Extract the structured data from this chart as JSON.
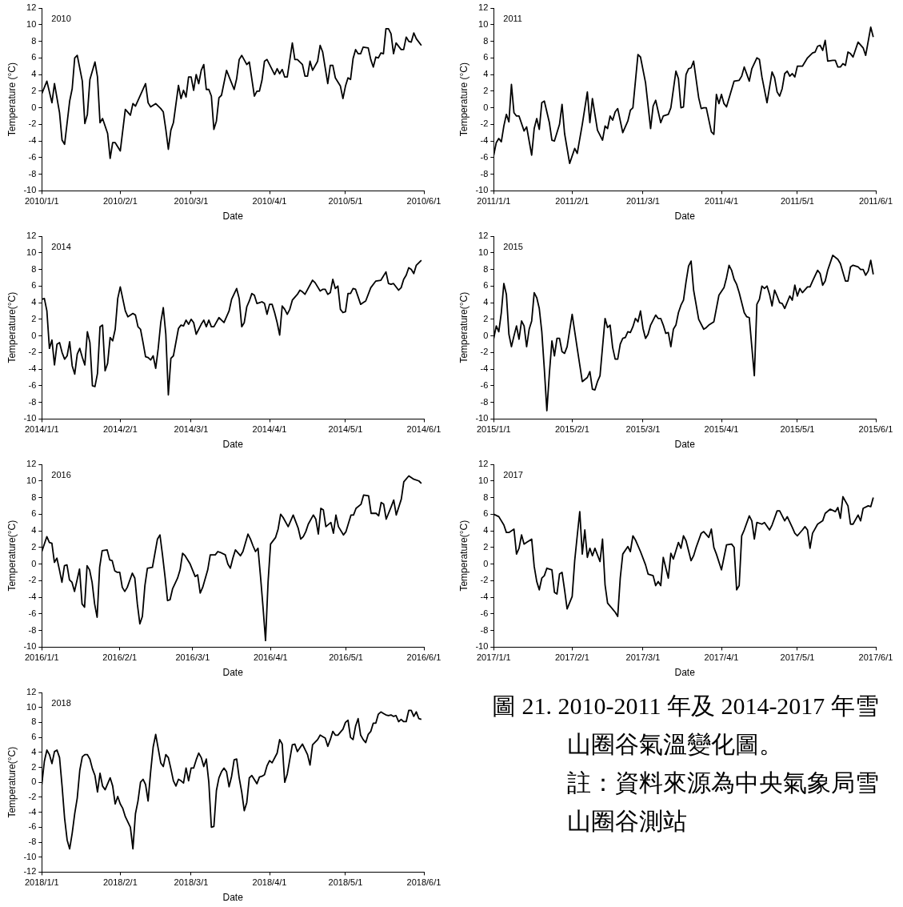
{
  "chart_data": [
    {
      "type": "line",
      "xlabel": "Date",
      "ylabel": "Temperature (°C)",
      "annotations": [
        "2010"
      ],
      "color": "#000000",
      "xlim": [
        "2010-01-01",
        "2010-06-01"
      ],
      "xticks": [
        {
          "value": "2010-01-01",
          "label": "2010/1/1"
        },
        {
          "value": "2010-02-01",
          "label": "2010/2/1"
        },
        {
          "value": "2010-03-01",
          "label": "2010/3/1"
        },
        {
          "value": "2010-04-01",
          "label": "2010/4/1"
        },
        {
          "value": "2010-05-01",
          "label": "2010/5/1"
        },
        {
          "value": "2010-06-01",
          "label": "2010/6/1"
        }
      ],
      "ylim": [
        -10,
        12
      ],
      "yticks": [
        -10,
        -8,
        -6,
        -4,
        -2,
        0,
        2,
        4,
        6,
        8,
        10,
        12
      ],
      "x": [
        "2010-01-01",
        "2010-01-03",
        "2010-01-05",
        "2010-01-06",
        "2010-01-08",
        "2010-01-09",
        "2010-01-10",
        "2010-01-12",
        "2010-01-13",
        "2010-01-14",
        "2010-01-15",
        "2010-01-17",
        "2010-01-18",
        "2010-01-19",
        "2010-01-20",
        "2010-01-22",
        "2010-01-23",
        "2010-01-24",
        "2010-01-25",
        "2010-01-27",
        "2010-01-28",
        "2010-01-29",
        "2010-01-30",
        "2010-02-01",
        "2010-02-03",
        "2010-02-05",
        "2010-02-06",
        "2010-02-07",
        "2010-02-11",
        "2010-02-12",
        "2010-02-13",
        "2010-02-15",
        "2010-02-17",
        "2010-02-18",
        "2010-02-19",
        "2010-02-20",
        "2010-02-21",
        "2010-02-22",
        "2010-02-24",
        "2010-02-25",
        "2010-02-26",
        "2010-02-27",
        "2010-02-28",
        "2010-03-01",
        "2010-03-02",
        "2010-03-03",
        "2010-03-04",
        "2010-03-05",
        "2010-03-06",
        "2010-03-07",
        "2010-03-08",
        "2010-03-09",
        "2010-03-10",
        "2010-03-11",
        "2010-03-12",
        "2010-03-13",
        "2010-03-15",
        "2010-03-18",
        "2010-03-19",
        "2010-03-20",
        "2010-03-21",
        "2010-03-23",
        "2010-03-24",
        "2010-03-26",
        "2010-03-27",
        "2010-03-28",
        "2010-03-29",
        "2010-03-30",
        "2010-03-31",
        "2010-04-03",
        "2010-04-04",
        "2010-04-05",
        "2010-04-06",
        "2010-04-07",
        "2010-04-08",
        "2010-04-10",
        "2010-04-11",
        "2010-04-12",
        "2010-04-14",
        "2010-04-15",
        "2010-04-16",
        "2010-04-17",
        "2010-04-18",
        "2010-04-20",
        "2010-04-21",
        "2010-04-22",
        "2010-04-24",
        "2010-04-25",
        "2010-04-26",
        "2010-04-27",
        "2010-04-29",
        "2010-04-30",
        "2010-05-01",
        "2010-05-02",
        "2010-05-03",
        "2010-05-04",
        "2010-05-05",
        "2010-05-06",
        "2010-05-07",
        "2010-05-08",
        "2010-05-10",
        "2010-05-11",
        "2010-05-12",
        "2010-05-13",
        "2010-05-14",
        "2010-05-15",
        "2010-05-16",
        "2010-05-17",
        "2010-05-18",
        "2010-05-19",
        "2010-05-20",
        "2010-05-21",
        "2010-05-23",
        "2010-05-24",
        "2010-05-25",
        "2010-05-26",
        "2010-05-27",
        "2010-05-28",
        "2010-05-29",
        "2010-05-31"
      ],
      "values": [
        1.7,
        3.2,
        0.6,
        2.9,
        -0.6,
        -3.9,
        -4.4,
        0.8,
        2.3,
        6.0,
        6.3,
        3.2,
        -1.9,
        -0.8,
        3.4,
        5.5,
        3.7,
        -1.8,
        -1.3,
        -3.1,
        -6.1,
        -4.2,
        -4.2,
        -5.2,
        -0.2,
        -0.9,
        0.5,
        0.2,
        2.9,
        0.6,
        0.1,
        0.5,
        -0.1,
        -0.5,
        -2.6,
        -5.0,
        -2.7,
        -1.8,
        2.7,
        1.1,
        2.1,
        1.3,
        3.7,
        3.7,
        2.1,
        4.0,
        2.9,
        4.5,
        5.2,
        2.2,
        2.2,
        1.4,
        -2.6,
        -1.6,
        1.2,
        1.5,
        4.5,
        2.2,
        3.5,
        5.8,
        6.3,
        5.2,
        5.5,
        1.4,
        2.0,
        2.0,
        3.3,
        5.6,
        5.8,
        4.0,
        4.7,
        4.1,
        4.6,
        3.7,
        3.7,
        7.8,
        5.8,
        5.8,
        5.2,
        3.8,
        3.8,
        5.6,
        4.5,
        5.6,
        7.5,
        6.7,
        2.9,
        5.1,
        5.1,
        3.6,
        2.6,
        1.1,
        2.6,
        3.6,
        3.4,
        5.9,
        7.0,
        6.5,
        6.5,
        7.3,
        7.2,
        5.8,
        4.9,
        6.1,
        6.0,
        6.6,
        6.5,
        9.5,
        9.5,
        8.9,
        6.5,
        7.8,
        7.0,
        7.0,
        8.5,
        8.0,
        7.9,
        9.0,
        8.3,
        7.5
      ]
    },
    {
      "type": "line",
      "xlabel": "Date",
      "ylabel": "Temperature (°C)",
      "annotations": [
        "2011"
      ],
      "color": "#000000",
      "xlim": [
        "2011-01-01",
        "2011-06-01"
      ],
      "xticks": [
        {
          "value": "2011-01-01",
          "label": "2011/1/1"
        },
        {
          "value": "2011-02-01",
          "label": "2011/2/1"
        },
        {
          "value": "2011-03-01",
          "label": "2011/3/1"
        },
        {
          "value": "2011-04-01",
          "label": "2011/4/1"
        },
        {
          "value": "2011-05-01",
          "label": "2011/5/1"
        },
        {
          "value": "2011-06-01",
          "label": "2011/6/1"
        }
      ],
      "ylim": [
        -10,
        12
      ],
      "yticks": [
        -10,
        -8,
        -6,
        -4,
        -2,
        0,
        2,
        4,
        6,
        8,
        10,
        12
      ],
      "x": [
        "2011-01-01",
        "2011-01-02",
        "2011-01-03",
        "2011-01-04",
        "2011-01-05",
        "2011-01-06",
        "2011-01-07",
        "2011-01-08",
        "2011-01-09",
        "2011-01-10",
        "2011-01-11",
        "2011-01-13",
        "2011-01-14",
        "2011-01-16",
        "2011-01-17",
        "2011-01-18",
        "2011-01-19",
        "2011-01-20",
        "2011-01-21",
        "2011-01-23",
        "2011-01-24",
        "2011-01-25",
        "2011-01-27",
        "2011-01-28",
        "2011-01-29",
        "2011-01-31",
        "2011-02-02",
        "2011-02-03",
        "2011-02-05",
        "2011-02-07",
        "2011-02-08",
        "2011-02-09",
        "2011-02-11",
        "2011-02-13",
        "2011-02-14",
        "2011-02-15",
        "2011-02-16",
        "2011-02-17",
        "2011-02-18",
        "2011-02-19",
        "2011-02-21",
        "2011-02-23",
        "2011-02-24",
        "2011-02-25",
        "2011-02-27",
        "2011-02-28",
        "2011-03-02",
        "2011-03-04",
        "2011-03-05",
        "2011-03-06",
        "2011-03-08",
        "2011-03-09",
        "2011-03-11",
        "2011-03-12",
        "2011-03-14",
        "2011-03-15",
        "2011-03-16",
        "2011-03-17",
        "2011-03-18",
        "2011-03-19",
        "2011-03-20",
        "2011-03-21",
        "2011-03-23",
        "2011-03-24",
        "2011-03-25",
        "2011-03-26",
        "2011-03-28",
        "2011-03-29",
        "2011-03-30",
        "2011-03-31",
        "2011-04-01",
        "2011-04-02",
        "2011-04-03",
        "2011-04-06",
        "2011-04-08",
        "2011-04-09",
        "2011-04-10",
        "2011-04-12",
        "2011-04-13",
        "2011-04-15",
        "2011-04-16",
        "2011-04-17",
        "2011-04-19",
        "2011-04-21",
        "2011-04-22",
        "2011-04-23",
        "2011-04-24",
        "2011-04-25",
        "2011-04-26",
        "2011-04-27",
        "2011-04-28",
        "2011-04-29",
        "2011-04-30",
        "2011-05-01",
        "2011-05-03",
        "2011-05-05",
        "2011-05-07",
        "2011-05-08",
        "2011-05-09",
        "2011-05-10",
        "2011-05-11",
        "2011-05-12",
        "2011-05-13",
        "2011-05-15",
        "2011-05-16",
        "2011-05-17",
        "2011-05-18",
        "2011-05-19",
        "2011-05-20",
        "2011-05-21",
        "2011-05-22",
        "2011-05-23",
        "2011-05-25",
        "2011-05-27",
        "2011-05-28",
        "2011-05-30",
        "2011-05-31"
      ],
      "values": [
        -5.7,
        -4.2,
        -3.7,
        -4.1,
        -2.2,
        -0.8,
        -1.7,
        2.8,
        -0.6,
        -1.0,
        -1.0,
        -2.8,
        -2.3,
        -5.7,
        -2.5,
        -1.3,
        -2.6,
        0.6,
        0.8,
        -1.8,
        -3.9,
        -4.0,
        -2.0,
        0.4,
        -3.1,
        -6.7,
        -4.9,
        -5.5,
        -2.0,
        1.9,
        -1.8,
        1.1,
        -2.7,
        -3.9,
        -2.2,
        -2.5,
        -1.0,
        -1.5,
        -0.5,
        -0.1,
        -3.0,
        -1.6,
        -0.3,
        0.0,
        6.4,
        6.1,
        3.0,
        -2.5,
        0.2,
        0.9,
        -1.8,
        -1.0,
        -0.8,
        0.0,
        4.4,
        3.5,
        0.0,
        0.1,
        4.0,
        4.7,
        4.8,
        5.6,
        1.2,
        -0.1,
        0.0,
        0.0,
        -2.9,
        -3.2,
        1.6,
        0.5,
        1.6,
        0.5,
        0.1,
        3.2,
        3.3,
        3.8,
        4.9,
        3.2,
        4.7,
        6.0,
        5.8,
        3.7,
        0.6,
        4.3,
        3.6,
        1.9,
        1.4,
        2.3,
        4.1,
        4.4,
        3.8,
        4.1,
        3.7,
        5.0,
        5.0,
        6.0,
        6.6,
        6.7,
        7.4,
        7.5,
        6.9,
        8.1,
        5.6,
        5.7,
        5.7,
        4.9,
        4.9,
        5.3,
        5.1,
        6.7,
        6.5,
        6.1,
        7.9,
        7.2,
        6.3,
        9.7,
        8.5
      ]
    },
    {
      "type": "line",
      "xlabel": "Date",
      "ylabel": "Temperature(°C)",
      "annotations": [
        "2014"
      ],
      "color": "#000000",
      "xlim": [
        "2014-01-01",
        "2014-06-01"
      ],
      "xticks": [
        {
          "value": "2014-01-01",
          "label": "2014/1/1"
        },
        {
          "value": "2014-02-01",
          "label": "2014/2/1"
        },
        {
          "value": "2014-03-01",
          "label": "2014/3/1"
        },
        {
          "value": "2014-04-01",
          "label": "2014/4/1"
        },
        {
          "value": "2014-05-01",
          "label": "2014/5/1"
        },
        {
          "value": "2014-06-01",
          "label": "2014/6/1"
        }
      ],
      "ylim": [
        -10,
        12
      ],
      "yticks": [
        -10,
        -8,
        -6,
        -4,
        -2,
        0,
        2,
        4,
        6,
        8,
        10,
        12
      ],
      "x": [
        "2014-01-01",
        "2014-01-02",
        "2014-01-03",
        "2014-01-04",
        "2014-01-05",
        "2014-01-06",
        "2014-01-07",
        "2014-01-08",
        "2014-01-09",
        "2014-01-10",
        "2014-01-11",
        "2014-01-12",
        "2014-01-13",
        "2014-01-14",
        "2014-01-15",
        "2014-01-16",
        "2014-01-17",
        "2014-01-18",
        "2014-01-19",
        "2014-01-20",
        "2014-01-21",
        "2014-01-22",
        "2014-01-23",
        "2014-01-24",
        "2014-01-25",
        "2014-01-26",
        "2014-01-27",
        "2014-01-28",
        "2014-01-29",
        "2014-01-30",
        "2014-01-31",
        "2014-02-01",
        "2014-02-03",
        "2014-02-04",
        "2014-02-06",
        "2014-02-07",
        "2014-02-08",
        "2014-02-09",
        "2014-02-10",
        "2014-02-11",
        "2014-02-12",
        "2014-02-13",
        "2014-02-14",
        "2014-02-15",
        "2014-02-16",
        "2014-02-17",
        "2014-02-18",
        "2014-02-19",
        "2014-02-20",
        "2014-02-21",
        "2014-02-22",
        "2014-02-24",
        "2014-02-25",
        "2014-02-26",
        "2014-02-27",
        "2014-02-28",
        "2014-03-01",
        "2014-03-02",
        "2014-03-03",
        "2014-03-05",
        "2014-03-06",
        "2014-03-07",
        "2014-03-08",
        "2014-03-09",
        "2014-03-10",
        "2014-03-12",
        "2014-03-13",
        "2014-03-14",
        "2014-03-16",
        "2014-03-17",
        "2014-03-19",
        "2014-03-20",
        "2014-03-21",
        "2014-03-22",
        "2014-03-23",
        "2014-03-24",
        "2014-03-25",
        "2014-03-26",
        "2014-03-27",
        "2014-03-28",
        "2014-03-29",
        "2014-03-30",
        "2014-03-31",
        "2014-04-01",
        "2014-04-02",
        "2014-04-03",
        "2014-04-04",
        "2014-04-05",
        "2014-04-06",
        "2014-04-07",
        "2014-04-08",
        "2014-04-09",
        "2014-04-10",
        "2014-04-12",
        "2014-04-13",
        "2014-04-14",
        "2014-04-15",
        "2014-04-18",
        "2014-04-19",
        "2014-04-21",
        "2014-04-22",
        "2014-04-23",
        "2014-04-24",
        "2014-04-25",
        "2014-04-26",
        "2014-04-27",
        "2014-04-28",
        "2014-04-29",
        "2014-04-30",
        "2014-05-01",
        "2014-05-02",
        "2014-05-03",
        "2014-05-04",
        "2014-05-05",
        "2014-05-07",
        "2014-05-08",
        "2014-05-09",
        "2014-05-11",
        "2014-05-13",
        "2014-05-15",
        "2014-05-17",
        "2014-05-18",
        "2014-05-19",
        "2014-05-20",
        "2014-05-22",
        "2014-05-23",
        "2014-05-24",
        "2014-05-25",
        "2014-05-26",
        "2014-05-27",
        "2014-05-28",
        "2014-05-29",
        "2014-05-31"
      ],
      "values": [
        4.4,
        4.5,
        3.0,
        -1.5,
        -0.5,
        -3.5,
        -1.0,
        -0.8,
        -2.0,
        -2.8,
        -2.4,
        -0.7,
        -3.6,
        -4.6,
        -2.2,
        -1.5,
        -2.6,
        -3.5,
        0.5,
        -0.8,
        -6.0,
        -6.1,
        -4.5,
        1.1,
        1.3,
        -4.2,
        -3.3,
        -0.2,
        -0.6,
        0.8,
        4.5,
        5.9,
        3.0,
        2.3,
        2.7,
        2.5,
        1.1,
        0.8,
        -0.8,
        -2.5,
        -2.6,
        -2.9,
        -2.4,
        -3.9,
        -1.5,
        1.6,
        3.4,
        0.2,
        -7.1,
        -2.7,
        -2.4,
        0.9,
        1.3,
        1.2,
        1.9,
        1.4,
        2.0,
        1.6,
        0.2,
        1.4,
        1.9,
        1.1,
        1.9,
        1.1,
        1.1,
        2.2,
        1.9,
        1.6,
        3.0,
        4.4,
        5.7,
        4.5,
        1.1,
        1.6,
        3.5,
        4.2,
        5.1,
        4.9,
        3.9,
        4.0,
        4.1,
        3.9,
        2.6,
        3.8,
        3.8,
        2.8,
        1.6,
        0.1,
        3.6,
        3.2,
        2.6,
        3.2,
        4.3,
        5.0,
        5.5,
        5.3,
        5.0,
        6.7,
        6.4,
        5.4,
        5.6,
        5.6,
        5.0,
        5.2,
        6.8,
        5.7,
        6.0,
        3.2,
        2.8,
        2.9,
        5.1,
        5.1,
        5.7,
        5.6,
        3.8,
        4.0,
        4.2,
        5.8,
        6.6,
        6.7,
        7.7,
        6.3,
        6.2,
        6.3,
        5.5,
        5.8,
        6.8,
        7.3,
        8.2,
        8.0,
        7.5,
        8.5,
        9.1
      ]
    },
    {
      "type": "line",
      "xlabel": "Date",
      "ylabel": "Temperature(°C)",
      "annotations": [
        "2015"
      ],
      "color": "#000000",
      "xlim": [
        "2015-01-01",
        "2015-06-01"
      ],
      "xticks": [
        {
          "value": "2015-01-01",
          "label": "2015/1/1"
        },
        {
          "value": "2015-02-01",
          "label": "2015/2/1"
        },
        {
          "value": "2015-03-01",
          "label": "2015/3/1"
        },
        {
          "value": "2015-04-01",
          "label": "2015/4/1"
        },
        {
          "value": "2015-05-01",
          "label": "2015/5/1"
        },
        {
          "value": "2015-06-01",
          "label": "2015/6/1"
        }
      ],
      "ylim": [
        -10,
        12
      ],
      "yticks": [
        -10,
        -8,
        -6,
        -4,
        -2,
        0,
        2,
        4,
        6,
        8,
        10,
        12
      ],
      "x": [
        "2015-01-01",
        "2015-01-02",
        "2015-01-03",
        "2015-01-04",
        "2015-01-05",
        "2015-01-06",
        "2015-01-07",
        "2015-01-08",
        "2015-01-09",
        "2015-01-10",
        "2015-01-11",
        "2015-01-12",
        "2015-01-13",
        "2015-01-14",
        "2015-01-15",
        "2015-01-16",
        "2015-01-17",
        "2015-01-18",
        "2015-01-19",
        "2015-01-20",
        "2015-01-21",
        "2015-01-22",
        "2015-01-23",
        "2015-01-24",
        "2015-01-25",
        "2015-01-26",
        "2015-01-27",
        "2015-01-28",
        "2015-01-29",
        "2015-01-30",
        "2015-02-01",
        "2015-02-03",
        "2015-02-05",
        "2015-02-07",
        "2015-02-08",
        "2015-02-09",
        "2015-02-10",
        "2015-02-11",
        "2015-02-12",
        "2015-02-14",
        "2015-02-15",
        "2015-02-16",
        "2015-02-17",
        "2015-02-18",
        "2015-02-19",
        "2015-02-20",
        "2015-02-21",
        "2015-02-22",
        "2015-02-23",
        "2015-02-24",
        "2015-02-25",
        "2015-02-26",
        "2015-02-27",
        "2015-02-28",
        "2015-03-01",
        "2015-03-02",
        "2015-03-03",
        "2015-03-04",
        "2015-03-06",
        "2015-03-07",
        "2015-03-08",
        "2015-03-09",
        "2015-03-10",
        "2015-03-11",
        "2015-03-12",
        "2015-03-13",
        "2015-03-14",
        "2015-03-15",
        "2015-03-16",
        "2015-03-17",
        "2015-03-18",
        "2015-03-19",
        "2015-03-20",
        "2015-03-21",
        "2015-03-23",
        "2015-03-25",
        "2015-03-26",
        "2015-03-27",
        "2015-03-29",
        "2015-03-31",
        "2015-04-02",
        "2015-04-03",
        "2015-04-04",
        "2015-04-05",
        "2015-04-06",
        "2015-04-07",
        "2015-04-08",
        "2015-04-10",
        "2015-04-11",
        "2015-04-12",
        "2015-04-13",
        "2015-04-14",
        "2015-04-15",
        "2015-04-16",
        "2015-04-17",
        "2015-04-18",
        "2015-04-19",
        "2015-04-20",
        "2015-04-21",
        "2015-04-22",
        "2015-04-23",
        "2015-04-24",
        "2015-04-25",
        "2015-04-26",
        "2015-04-28",
        "2015-04-29",
        "2015-04-30",
        "2015-05-01",
        "2015-05-02",
        "2015-05-03",
        "2015-05-05",
        "2015-05-06",
        "2015-05-07",
        "2015-05-09",
        "2015-05-10",
        "2015-05-11",
        "2015-05-12",
        "2015-05-13",
        "2015-05-15",
        "2015-05-17",
        "2015-05-18",
        "2015-05-20",
        "2015-05-21",
        "2015-05-22",
        "2015-05-23",
        "2015-05-25",
        "2015-05-26",
        "2015-05-27",
        "2015-05-28",
        "2015-05-29",
        "2015-05-30",
        "2015-05-31"
      ],
      "values": [
        -0.3,
        1.2,
        0.5,
        2.8,
        6.3,
        5.0,
        0.2,
        -1.3,
        0.0,
        1.2,
        -0.4,
        1.8,
        1.2,
        -1.3,
        0.8,
        1.8,
        5.2,
        4.6,
        3.3,
        0.5,
        -4.0,
        -9.0,
        -4.5,
        -0.6,
        -2.4,
        -0.3,
        -0.3,
        -1.9,
        -2.1,
        -1.3,
        2.6,
        -1.5,
        -5.5,
        -5.0,
        -4.3,
        -6.4,
        -6.5,
        -5.5,
        -4.8,
        2.1,
        1.0,
        1.3,
        -1.4,
        -2.8,
        -2.8,
        -1.0,
        -0.3,
        -0.2,
        0.5,
        0.4,
        1.1,
        2.1,
        1.7,
        3.0,
        0.9,
        -0.3,
        0.2,
        1.3,
        2.5,
        2.1,
        2.1,
        1.3,
        0.3,
        0.4,
        -1.3,
        0.8,
        1.3,
        2.8,
        3.7,
        4.3,
        6.5,
        8.4,
        9.0,
        5.5,
        2.0,
        0.8,
        1.0,
        1.3,
        1.7,
        4.9,
        5.8,
        7.0,
        8.5,
        7.9,
        6.8,
        6.2,
        5.2,
        2.8,
        2.3,
        2.2,
        -1.3,
        -4.8,
        3.8,
        4.4,
        6.0,
        5.7,
        6.0,
        5.0,
        3.6,
        5.5,
        4.8,
        4.0,
        3.9,
        3.3,
        4.8,
        4.3,
        6.1,
        4.8,
        5.7,
        5.2,
        5.9,
        5.9,
        6.6,
        7.9,
        7.5,
        6.1,
        6.6,
        7.9,
        9.7,
        9.2,
        8.7,
        6.6,
        6.6,
        8.3,
        8.5,
        8.3,
        8.0,
        8.0,
        7.3,
        7.8,
        9.1,
        7.4
      ]
    },
    {
      "type": "line",
      "xlabel": "Date",
      "ylabel": "Temperature(°C)",
      "annotations": [
        "2016"
      ],
      "color": "#000000",
      "xlim": [
        "2016-01-01",
        "2016-06-01"
      ],
      "xticks": [
        {
          "value": "2016-01-01",
          "label": "2016/1/1"
        },
        {
          "value": "2016-02-01",
          "label": "2016/2/1"
        },
        {
          "value": "2016-03-01",
          "label": "2016/3/1"
        },
        {
          "value": "2016-04-01",
          "label": "2016/4/1"
        },
        {
          "value": "2016-05-01",
          "label": "2016/5/1"
        },
        {
          "value": "2016-06-01",
          "label": "2016/6/1"
        }
      ],
      "ylim": [
        -10,
        12
      ],
      "yticks": [
        -10,
        -8,
        -6,
        -4,
        -2,
        0,
        2,
        4,
        6,
        8,
        10,
        12
      ],
      "x": [
        "2016-01-01",
        "2016-01-03",
        "2016-01-04",
        "2016-01-05",
        "2016-01-06",
        "2016-01-07",
        "2016-01-08",
        "2016-01-09",
        "2016-01-10",
        "2016-01-11",
        "2016-01-12",
        "2016-01-13",
        "2016-01-14",
        "2016-01-16",
        "2016-01-17",
        "2016-01-18",
        "2016-01-19",
        "2016-01-20",
        "2016-01-21",
        "2016-01-22",
        "2016-01-23",
        "2016-01-24",
        "2016-01-25",
        "2016-01-27",
        "2016-01-28",
        "2016-01-29",
        "2016-01-30",
        "2016-01-31",
        "2016-02-01",
        "2016-02-02",
        "2016-02-03",
        "2016-02-04",
        "2016-02-06",
        "2016-02-07",
        "2016-02-08",
        "2016-02-09",
        "2016-02-10",
        "2016-02-11",
        "2016-02-12",
        "2016-02-14",
        "2016-02-16",
        "2016-02-17",
        "2016-02-18",
        "2016-02-19",
        "2016-02-20",
        "2016-02-21",
        "2016-02-22",
        "2016-02-24",
        "2016-02-25",
        "2016-02-26",
        "2016-02-27",
        "2016-02-29",
        "2016-03-02",
        "2016-03-03",
        "2016-03-04",
        "2016-03-05",
        "2016-03-07",
        "2016-03-08",
        "2016-03-10",
        "2016-03-11",
        "2016-03-12",
        "2016-03-14",
        "2016-03-15",
        "2016-03-16",
        "2016-03-17",
        "2016-03-18",
        "2016-03-20",
        "2016-03-21",
        "2016-03-23",
        "2016-03-24",
        "2016-03-25",
        "2016-03-26",
        "2016-03-27",
        "2016-03-28",
        "2016-03-29",
        "2016-03-30",
        "2016-03-31",
        "2016-04-01",
        "2016-04-03",
        "2016-04-04",
        "2016-04-05",
        "2016-04-06",
        "2016-04-08",
        "2016-04-09",
        "2016-04-10",
        "2016-04-12",
        "2016-04-13",
        "2016-04-14",
        "2016-04-15",
        "2016-04-16",
        "2016-04-18",
        "2016-04-19",
        "2016-04-20",
        "2016-04-21",
        "2016-04-22",
        "2016-04-23",
        "2016-04-25",
        "2016-04-26",
        "2016-04-27",
        "2016-04-28",
        "2016-04-30",
        "2016-05-01",
        "2016-05-03",
        "2016-05-04",
        "2016-05-05",
        "2016-05-07",
        "2016-05-08",
        "2016-05-10",
        "2016-05-11",
        "2016-05-13",
        "2016-05-14",
        "2016-05-15",
        "2016-05-16",
        "2016-05-17",
        "2016-05-19",
        "2016-05-20",
        "2016-05-21",
        "2016-05-23",
        "2016-05-24",
        "2016-05-26",
        "2016-05-28",
        "2016-05-30",
        "2016-05-31"
      ],
      "values": [
        1.5,
        3.3,
        2.6,
        2.5,
        0.2,
        0.7,
        -0.7,
        -2.2,
        -0.2,
        -0.1,
        -1.9,
        -2.2,
        -3.3,
        -0.6,
        -4.8,
        -5.2,
        -0.2,
        -0.7,
        -2.2,
        -4.8,
        -6.4,
        -0.4,
        1.6,
        1.7,
        0.5,
        0.4,
        -0.8,
        -1.0,
        -1.0,
        -2.8,
        -3.3,
        -2.8,
        -1.1,
        -1.7,
        -4.8,
        -7.2,
        -6.3,
        -2.6,
        -0.5,
        -0.4,
        3.0,
        3.5,
        1.1,
        -1.5,
        -4.4,
        -4.3,
        -3.0,
        -1.7,
        -0.7,
        1.3,
        1.0,
        0.0,
        -1.5,
        -1.3,
        -3.5,
        -2.8,
        -0.7,
        1.1,
        1.1,
        1.5,
        1.4,
        1.1,
        0.0,
        -0.5,
        0.7,
        1.7,
        1.0,
        1.5,
        3.6,
        3.0,
        2.2,
        1.5,
        1.9,
        -1.5,
        -5.2,
        -9.2,
        -2.2,
        2.4,
        3.2,
        4.2,
        6.0,
        5.6,
        4.5,
        5.2,
        5.9,
        4.3,
        3.0,
        3.3,
        3.9,
        4.8,
        5.9,
        5.4,
        3.6,
        6.7,
        6.5,
        4.5,
        5.0,
        3.7,
        5.9,
        4.5,
        3.5,
        3.9,
        5.9,
        5.9,
        6.7,
        7.2,
        8.3,
        8.2,
        6.1,
        6.1,
        5.8,
        7.4,
        7.2,
        5.4,
        6.9,
        7.7,
        5.9,
        7.8,
        9.9,
        10.6,
        10.2,
        10.0,
        9.7
      ]
    },
    {
      "type": "line",
      "xlabel": "Date",
      "ylabel": "Temperature(°C)",
      "annotations": [
        "2017"
      ],
      "color": "#000000",
      "xlim": [
        "2017-01-01",
        "2017-06-01"
      ],
      "xticks": [
        {
          "value": "2017-01-01",
          "label": "2017/1/1"
        },
        {
          "value": "2017-02-01",
          "label": "2017/2/1"
        },
        {
          "value": "2017-03-01",
          "label": "2017/3/1"
        },
        {
          "value": "2017-04-01",
          "label": "2017/4/1"
        },
        {
          "value": "2017-05-01",
          "label": "2017/5/1"
        },
        {
          "value": "2017-06-01",
          "label": "2017/6/1"
        }
      ],
      "ylim": [
        -10,
        12
      ],
      "yticks": [
        -10,
        -8,
        -6,
        -4,
        -2,
        0,
        2,
        4,
        6,
        8,
        10,
        12
      ],
      "x": [
        "2017-01-01",
        "2017-01-03",
        "2017-01-05",
        "2017-01-06",
        "2017-01-07",
        "2017-01-09",
        "2017-01-10",
        "2017-01-11",
        "2017-01-12",
        "2017-01-13",
        "2017-01-14",
        "2017-01-16",
        "2017-01-17",
        "2017-01-18",
        "2017-01-19",
        "2017-01-20",
        "2017-01-21",
        "2017-01-22",
        "2017-01-24",
        "2017-01-25",
        "2017-01-26",
        "2017-01-27",
        "2017-01-28",
        "2017-01-29",
        "2017-01-30",
        "2017-02-01",
        "2017-02-02",
        "2017-02-03",
        "2017-02-04",
        "2017-02-05",
        "2017-02-06",
        "2017-02-07",
        "2017-02-08",
        "2017-02-09",
        "2017-02-10",
        "2017-02-12",
        "2017-02-13",
        "2017-02-14",
        "2017-02-15",
        "2017-02-18",
        "2017-02-19",
        "2017-02-20",
        "2017-02-21",
        "2017-02-23",
        "2017-02-24",
        "2017-02-25",
        "2017-02-26",
        "2017-02-28",
        "2017-03-02",
        "2017-03-03",
        "2017-03-05",
        "2017-03-06",
        "2017-03-07",
        "2017-03-08",
        "2017-03-09",
        "2017-03-11",
        "2017-03-12",
        "2017-03-13",
        "2017-03-15",
        "2017-03-16",
        "2017-03-17",
        "2017-03-18",
        "2017-03-20",
        "2017-03-21",
        "2017-03-22",
        "2017-03-24",
        "2017-03-25",
        "2017-03-27",
        "2017-03-28",
        "2017-03-29",
        "2017-03-30",
        "2017-04-01",
        "2017-04-02",
        "2017-04-03",
        "2017-04-05",
        "2017-04-06",
        "2017-04-07",
        "2017-04-08",
        "2017-04-09",
        "2017-04-10",
        "2017-04-12",
        "2017-04-13",
        "2017-04-14",
        "2017-04-15",
        "2017-04-17",
        "2017-04-18",
        "2017-04-20",
        "2017-04-21",
        "2017-04-23",
        "2017-04-24",
        "2017-04-26",
        "2017-04-27",
        "2017-04-29",
        "2017-04-30",
        "2017-05-01",
        "2017-05-03",
        "2017-05-04",
        "2017-05-05",
        "2017-05-06",
        "2017-05-07",
        "2017-05-09",
        "2017-05-11",
        "2017-05-12",
        "2017-05-14",
        "2017-05-16",
        "2017-05-17",
        "2017-05-18",
        "2017-05-19",
        "2017-05-21",
        "2017-05-22",
        "2017-05-23",
        "2017-05-25",
        "2017-05-26",
        "2017-05-27",
        "2017-05-29",
        "2017-05-30",
        "2017-05-31"
      ],
      "values": [
        6.0,
        5.7,
        4.7,
        3.8,
        3.8,
        4.2,
        1.2,
        1.9,
        3.5,
        2.4,
        2.6,
        3.0,
        -0.3,
        -2.1,
        -3.1,
        -1.7,
        -1.4,
        -0.5,
        -0.7,
        -3.4,
        -3.6,
        -1.2,
        -1.0,
        -3.1,
        -5.4,
        -3.9,
        0.4,
        3.4,
        6.3,
        1.2,
        4.1,
        0.8,
        1.9,
        1.0,
        1.9,
        0.3,
        3.0,
        -2.5,
        -4.7,
        -5.8,
        -6.3,
        -1.7,
        1.2,
        2.1,
        1.5,
        3.4,
        2.9,
        1.5,
        -0.1,
        -1.2,
        -1.4,
        -2.6,
        -2.1,
        -2.6,
        0.8,
        -1.7,
        1.3,
        0.6,
        2.6,
        1.9,
        3.4,
        2.8,
        0.4,
        1.0,
        2.0,
        3.7,
        3.9,
        3.2,
        4.2,
        2.0,
        1.2,
        -0.7,
        0.8,
        2.3,
        2.4,
        2.0,
        -3.1,
        -2.6,
        3.4,
        4.1,
        5.8,
        5.2,
        3.0,
        5.0,
        4.8,
        5.0,
        4.1,
        4.7,
        6.4,
        6.4,
        5.2,
        5.7,
        4.4,
        3.7,
        3.4,
        4.1,
        4.5,
        4.1,
        1.9,
        3.7,
        4.8,
        5.2,
        6.1,
        6.6,
        6.3,
        6.8,
        5.5,
        8.1,
        7.0,
        4.8,
        4.8,
        5.9,
        5.2,
        6.7,
        7.0,
        6.9,
        8.0
      ]
    },
    {
      "type": "line",
      "xlabel": "Date",
      "ylabel": "Temperature(°C)",
      "annotations": [
        "2018"
      ],
      "color": "#000000",
      "xlim": [
        "2018-01-01",
        "2018-06-01"
      ],
      "xticks": [
        {
          "value": "2018-01-01",
          "label": "2018/1/1"
        },
        {
          "value": "2018-02-01",
          "label": "2018/2/1"
        },
        {
          "value": "2018-03-01",
          "label": "2018/3/1"
        },
        {
          "value": "2018-04-01",
          "label": "2018/4/1"
        },
        {
          "value": "2018-05-01",
          "label": "2018/5/1"
        },
        {
          "value": "2018-06-01",
          "label": "2018/6/1"
        }
      ],
      "ylim": [
        -12,
        12
      ],
      "yticks": [
        -12,
        -10,
        -8,
        -6,
        -4,
        -2,
        0,
        2,
        4,
        6,
        8,
        10,
        12
      ],
      "x": [
        "2018-01-01",
        "2018-01-02",
        "2018-01-03",
        "2018-01-04",
        "2018-01-05",
        "2018-01-06",
        "2018-01-07",
        "2018-01-08",
        "2018-01-09",
        "2018-01-10",
        "2018-01-11",
        "2018-01-12",
        "2018-01-13",
        "2018-01-14",
        "2018-01-15",
        "2018-01-16",
        "2018-01-17",
        "2018-01-18",
        "2018-01-19",
        "2018-01-20",
        "2018-01-21",
        "2018-01-22",
        "2018-01-23",
        "2018-01-24",
        "2018-01-25",
        "2018-01-26",
        "2018-01-28",
        "2018-01-29",
        "2018-01-30",
        "2018-01-31",
        "2018-02-01",
        "2018-02-02",
        "2018-02-03",
        "2018-02-05",
        "2018-02-06",
        "2018-02-07",
        "2018-02-08",
        "2018-02-09",
        "2018-02-10",
        "2018-02-11",
        "2018-02-12",
        "2018-02-13",
        "2018-02-14",
        "2018-02-15",
        "2018-02-16",
        "2018-02-17",
        "2018-02-18",
        "2018-02-19",
        "2018-02-20",
        "2018-02-21",
        "2018-02-22",
        "2018-02-23",
        "2018-02-24",
        "2018-02-25",
        "2018-02-26",
        "2018-02-27",
        "2018-02-28",
        "2018-03-01",
        "2018-03-02",
        "2018-03-03",
        "2018-03-04",
        "2018-03-05",
        "2018-03-06",
        "2018-03-07",
        "2018-03-08",
        "2018-03-09",
        "2018-03-10",
        "2018-03-11",
        "2018-03-12",
        "2018-03-13",
        "2018-03-14",
        "2018-03-15",
        "2018-03-16",
        "2018-03-17",
        "2018-03-18",
        "2018-03-19",
        "2018-03-20",
        "2018-03-21",
        "2018-03-22",
        "2018-03-23",
        "2018-03-24",
        "2018-03-25",
        "2018-03-27",
        "2018-03-28",
        "2018-03-29",
        "2018-03-30",
        "2018-03-31",
        "2018-04-01",
        "2018-04-02",
        "2018-04-04",
        "2018-04-05",
        "2018-04-06",
        "2018-04-07",
        "2018-04-08",
        "2018-04-10",
        "2018-04-11",
        "2018-04-12",
        "2018-04-14",
        "2018-04-16",
        "2018-04-17",
        "2018-04-18",
        "2018-04-20",
        "2018-04-21",
        "2018-04-23",
        "2018-04-24",
        "2018-04-25",
        "2018-04-26",
        "2018-04-27",
        "2018-04-28",
        "2018-04-30",
        "2018-05-01",
        "2018-05-02",
        "2018-05-03",
        "2018-05-04",
        "2018-05-05",
        "2018-05-06",
        "2018-05-07",
        "2018-05-08",
        "2018-05-09",
        "2018-05-10",
        "2018-05-11",
        "2018-05-12",
        "2018-05-13",
        "2018-05-14",
        "2018-05-15",
        "2018-05-16",
        "2018-05-17",
        "2018-05-18",
        "2018-05-19",
        "2018-05-20",
        "2018-05-21",
        "2018-05-22",
        "2018-05-23",
        "2018-05-24",
        "2018-05-25",
        "2018-05-26",
        "2018-05-27",
        "2018-05-28",
        "2018-05-29",
        "2018-05-30",
        "2018-05-31"
      ],
      "values": [
        -0.3,
        2.8,
        4.3,
        3.7,
        2.5,
        4.1,
        4.3,
        3.3,
        -0.5,
        -4.8,
        -7.7,
        -8.9,
        -6.8,
        -4.2,
        -2.1,
        1.6,
        3.4,
        3.7,
        3.7,
        3.1,
        1.8,
        0.9,
        -1.3,
        1.2,
        -0.5,
        -1.0,
        0.6,
        -0.5,
        -2.9,
        -1.9,
        -2.9,
        -3.5,
        -4.6,
        -6.0,
        -8.9,
        -4.2,
        -2.5,
        0.0,
        0.4,
        -0.3,
        -2.5,
        1.4,
        4.7,
        6.4,
        4.5,
        2.6,
        2.1,
        3.7,
        3.3,
        1.8,
        0.2,
        -0.5,
        0.4,
        0.2,
        -0.1,
        1.9,
        0.2,
        1.9,
        1.9,
        3.0,
        3.9,
        3.3,
        2.1,
        3.1,
        0.0,
        -6.0,
        -5.9,
        -1.1,
        0.6,
        1.4,
        1.9,
        1.4,
        -0.6,
        0.8,
        3.0,
        3.1,
        0.6,
        -1.3,
        -3.8,
        -2.7,
        0.6,
        0.9,
        -0.2,
        0.7,
        0.8,
        1.0,
        2.2,
        2.9,
        2.6,
        3.9,
        5.7,
        5.1,
        0.0,
        1.1,
        5.0,
        5.1,
        4.1,
        5.1,
        3.7,
        2.3,
        5.0,
        5.7,
        6.3,
        5.9,
        4.8,
        5.7,
        6.8,
        6.3,
        6.3,
        7.1,
        8.0,
        8.3,
        6.0,
        5.7,
        7.5,
        8.5,
        6.3,
        5.7,
        5.3,
        6.4,
        6.8,
        7.9,
        7.9,
        9.1,
        9.4,
        9.2,
        9.0,
        8.9,
        9.0,
        8.8,
        8.9,
        8.1,
        8.4,
        8.1,
        8.1,
        9.6,
        9.6,
        8.8,
        9.4,
        8.5,
        8.4
      ]
    },
    {
      "type": "other",
      "title": "圖 21. 2010-2011 年及 2014-2017 年雪山圈谷氣溫變化圖。",
      "annotations": [
        "註：資料來源為中央氣象局雪山圈谷測站"
      ]
    }
  ]
}
